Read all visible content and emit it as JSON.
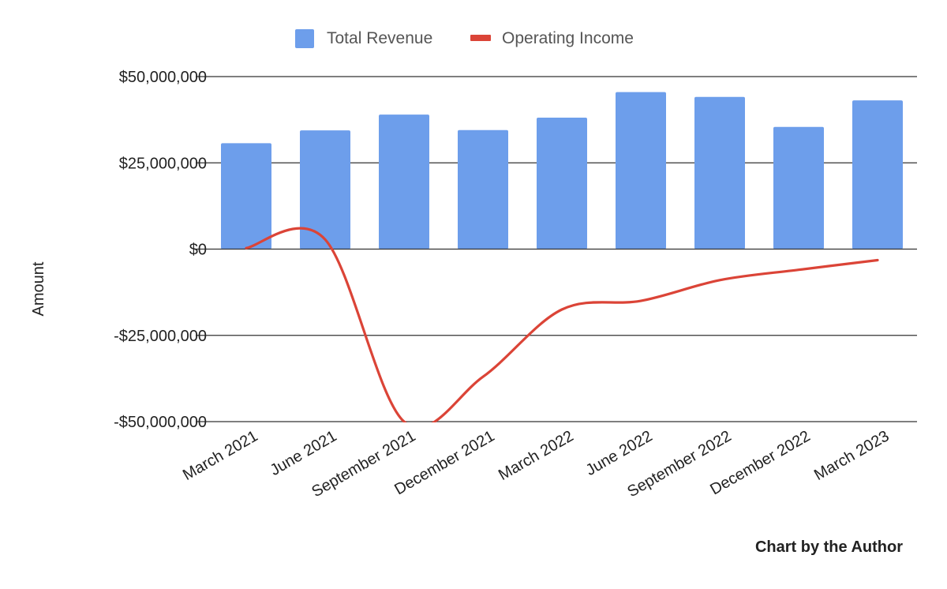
{
  "chart_data": {
    "type": "bar",
    "categories": [
      "March 2021",
      "June 2021",
      "September 2021",
      "December 2021",
      "March 2022",
      "June 2022",
      "September 2022",
      "December 2022",
      "March 2023"
    ],
    "series": [
      {
        "name": "Total Revenue",
        "type": "bar",
        "color": "#6d9eeb",
        "values": [
          30700000,
          34400000,
          39000000,
          34500000,
          38100000,
          45500000,
          44100000,
          35400000,
          43100000
        ]
      },
      {
        "name": "Operating Income",
        "type": "line",
        "smooth": true,
        "color": "#db4437",
        "values": [
          300000,
          2800000,
          -50000000,
          -37000000,
          -17500000,
          -15000000,
          -9000000,
          -6000000,
          -3200000
        ]
      }
    ],
    "ylabel": "Amount",
    "xlabel": "",
    "ylim": [
      -50000000,
      50000000
    ],
    "yticks": [
      50000000,
      25000000,
      0,
      -25000000,
      -50000000
    ],
    "ytick_labels": [
      "$50,000,000",
      "$25,000,000",
      "$0",
      "-$25,000,000",
      "-$50,000,000"
    ],
    "legend_position": "top-center",
    "grid": true,
    "credit": "Chart by the Author"
  }
}
